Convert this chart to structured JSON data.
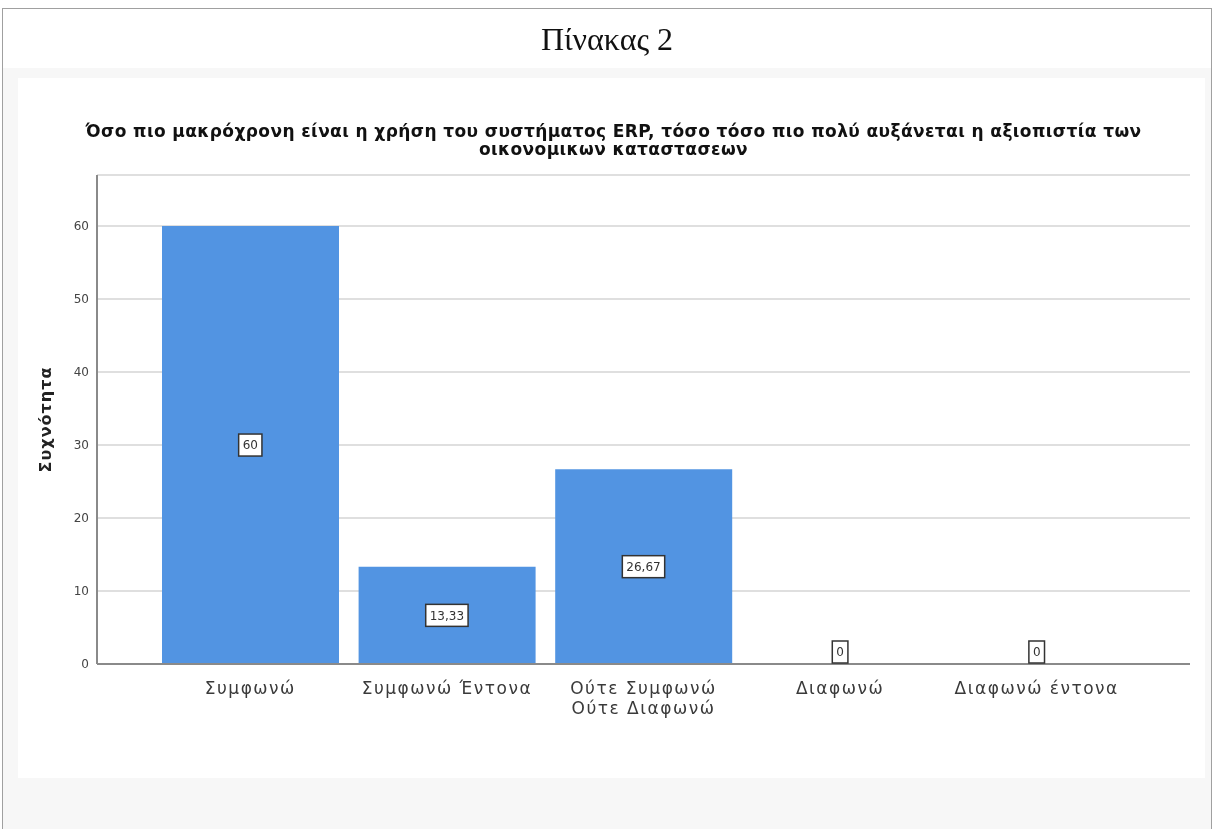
{
  "chart_data": {
    "type": "bar",
    "title": "Όσο πιο μακρόχρονη είναι η χρήση του συστήματος ERP, τόσο τόσο πιο πολύ αυξάνεται η αξιοπιστία των οικονομικων καταστασεων",
    "annotations": [
      "Πίνακας 2"
    ],
    "ylabel": "Συχνότητα",
    "categories": [
      "Συμφωνώ",
      "Συμφωνώ Έντονα",
      "Ούτε Συμφωνώ Ούτε Διαφωνώ",
      "Διαφωνώ",
      "Διαφωνώ έντονα"
    ],
    "values": [
      60,
      13.33,
      26.67,
      0,
      0
    ],
    "value_labels": [
      "60",
      "13,33",
      "26,67",
      "0",
      "0"
    ],
    "color": "#5294e2",
    "ylim": [
      0,
      67
    ],
    "yticks": [
      0,
      10,
      20,
      30,
      40,
      50,
      60
    ],
    "grid": "y"
  }
}
